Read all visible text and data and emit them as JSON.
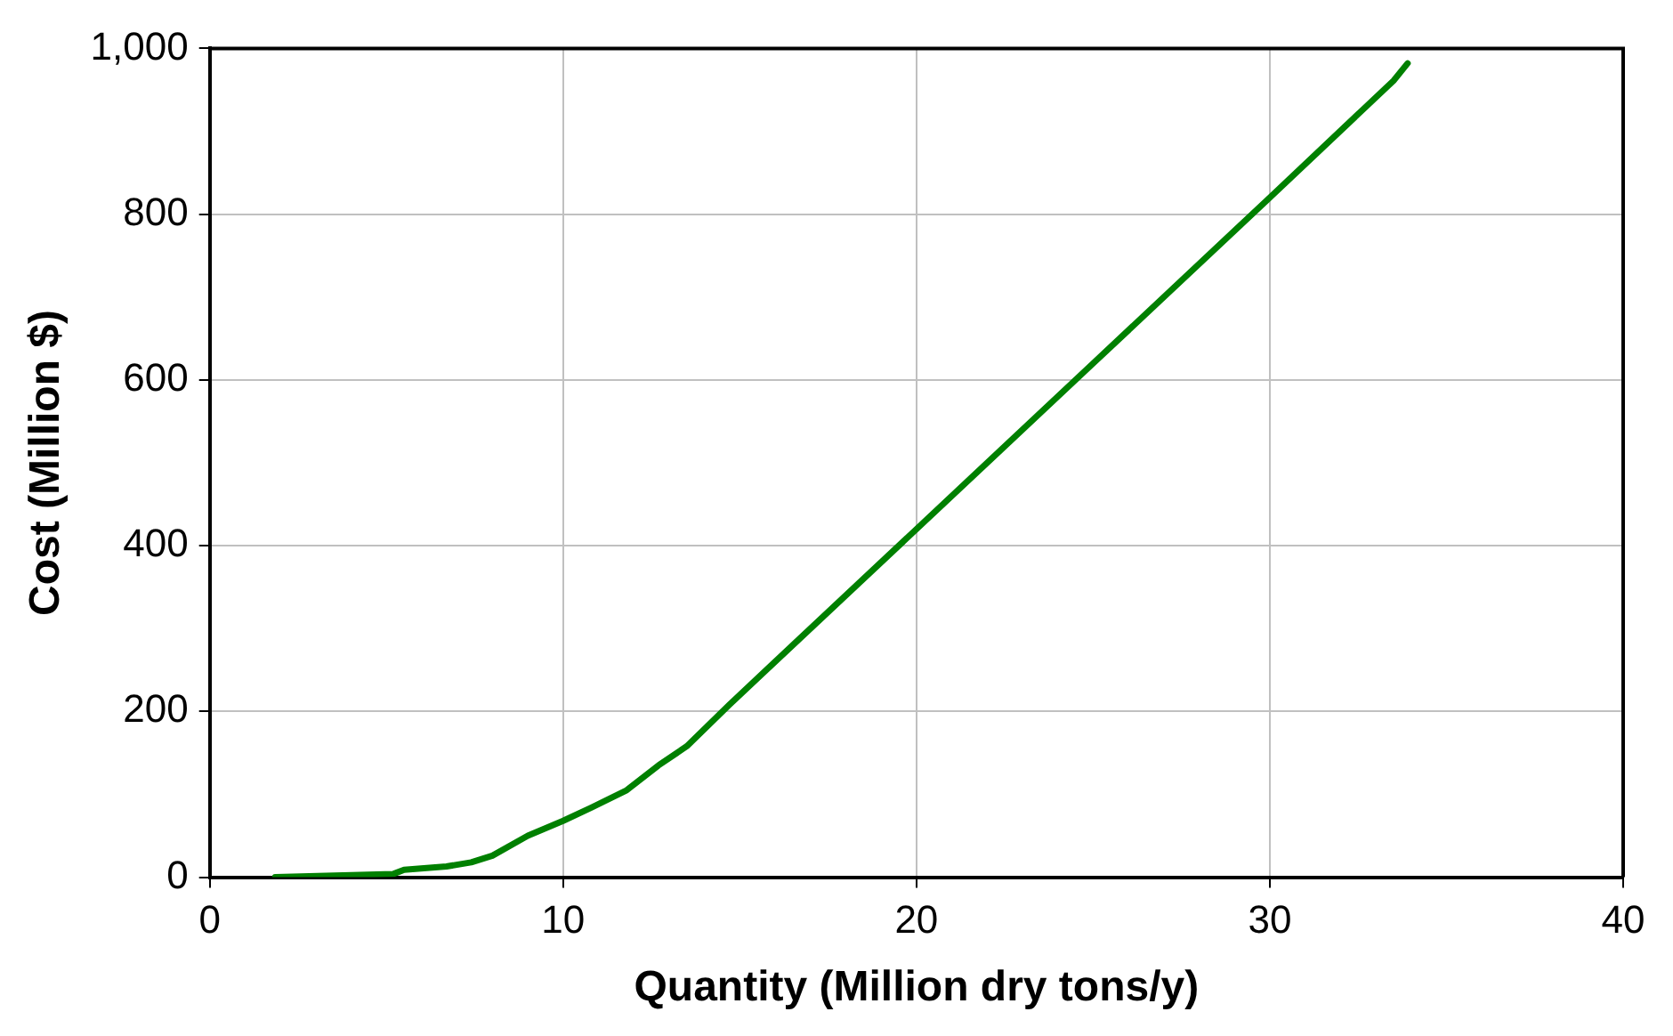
{
  "chart_data": {
    "type": "line",
    "xlabel": "Quantity (Million dry tons/y)",
    "ylabel": "Cost (Million $)",
    "series": [
      {
        "color": "#008000",
        "x": [
          1.85,
          5.2,
          5.5,
          6.7,
          7.4,
          8.0,
          9.0,
          10.0,
          10.8,
          11.8,
          12.7,
          13.5,
          14.7,
          16.7,
          20,
          25,
          30,
          33.5,
          33.9
        ],
        "values": [
          0,
          4,
          9,
          13,
          18,
          26,
          50,
          68,
          84,
          105,
          135,
          158,
          208,
          288,
          420,
          620,
          820,
          961,
          982
        ]
      }
    ],
    "xlim": [
      0,
      40
    ],
    "xticks": [
      0,
      10,
      20,
      30,
      40
    ],
    "ylim": [
      0,
      1000
    ],
    "yticks": [
      0,
      200,
      400,
      600,
      800,
      {
        "value": 1000,
        "label": "1,000"
      }
    ],
    "grid": true,
    "legend": false,
    "marker": "none",
    "line_style": "solid"
  }
}
